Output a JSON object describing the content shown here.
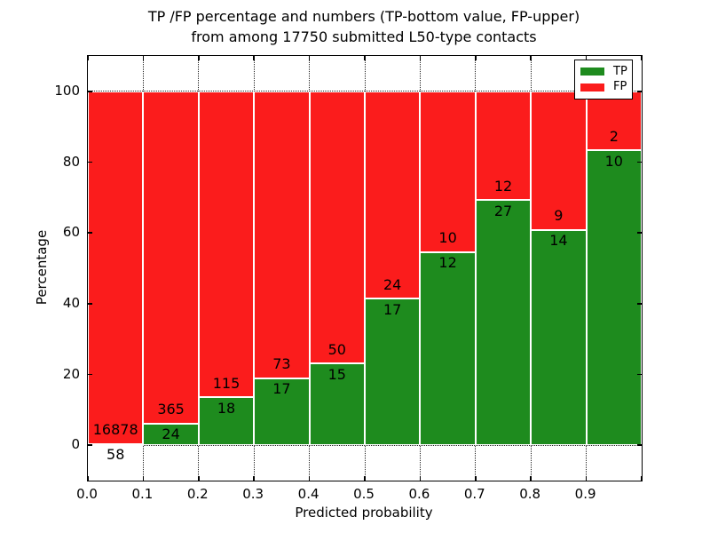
{
  "title": {
    "line1": "TP /FP percentage and numbers (TP-bottom value, FP-upper)",
    "line2": "from among 17750 submitted L50-type contacts"
  },
  "colors": {
    "tp": "#1e8b1e",
    "fp": "#fb1c1c",
    "grid": "#000000",
    "background": "#ffffff"
  },
  "chart_data": {
    "type": "bar",
    "stacked": true,
    "normalization": "each bin stacked to 100%; labels show raw counts (TP bottom value, FP upper)",
    "title": "TP /FP percentage and numbers (TP-bottom value, FP-upper) from among 17750 submitted L50-type contacts",
    "xlabel": "Predicted probability",
    "ylabel": "Percentage",
    "total_contacts": 17750,
    "xlim": [
      0.0,
      1.0
    ],
    "ylim": [
      -10,
      110
    ],
    "grid": {
      "visible": true,
      "style": "dotted"
    },
    "x_tick_labels": [
      "0.0",
      "0.1",
      "0.2",
      "0.3",
      "0.4",
      "0.5",
      "0.6",
      "0.7",
      "0.8",
      "0.9"
    ],
    "y_ticks": [
      0,
      20,
      40,
      60,
      80,
      100
    ],
    "y_tick_labels": [
      "0",
      "20",
      "40",
      "60",
      "80",
      "100"
    ],
    "legend": {
      "position": "upper-right",
      "entries": [
        {
          "label": "TP",
          "color": "#1e8b1e"
        },
        {
          "label": "FP",
          "color": "#fb1c1c"
        }
      ]
    },
    "series": [
      {
        "name": "TP",
        "counts": [
          58,
          24,
          18,
          17,
          15,
          17,
          12,
          27,
          14,
          10
        ]
      },
      {
        "name": "FP",
        "counts": [
          16878,
          365,
          115,
          73,
          50,
          24,
          10,
          12,
          9,
          2
        ]
      }
    ],
    "bins": [
      {
        "x0": 0.0,
        "x1": 0.1,
        "tp": 58,
        "fp": 16878,
        "tp_percent": 0.3
      },
      {
        "x0": 0.1,
        "x1": 0.2,
        "tp": 24,
        "fp": 365,
        "tp_percent": 6.2
      },
      {
        "x0": 0.2,
        "x1": 0.3,
        "tp": 18,
        "fp": 115,
        "tp_percent": 13.5
      },
      {
        "x0": 0.3,
        "x1": 0.4,
        "tp": 17,
        "fp": 73,
        "tp_percent": 18.9
      },
      {
        "x0": 0.4,
        "x1": 0.5,
        "tp": 15,
        "fp": 50,
        "tp_percent": 23.1
      },
      {
        "x0": 0.5,
        "x1": 0.6,
        "tp": 17,
        "fp": 24,
        "tp_percent": 41.5
      },
      {
        "x0": 0.6,
        "x1": 0.7,
        "tp": 12,
        "fp": 10,
        "tp_percent": 54.5
      },
      {
        "x0": 0.7,
        "x1": 0.8,
        "tp": 27,
        "fp": 12,
        "tp_percent": 69.2
      },
      {
        "x0": 0.8,
        "x1": 0.9,
        "tp": 14,
        "fp": 9,
        "tp_percent": 60.9
      },
      {
        "x0": 0.9,
        "x1": 1.0,
        "tp": 10,
        "fp": 2,
        "tp_percent": 83.3
      }
    ]
  }
}
